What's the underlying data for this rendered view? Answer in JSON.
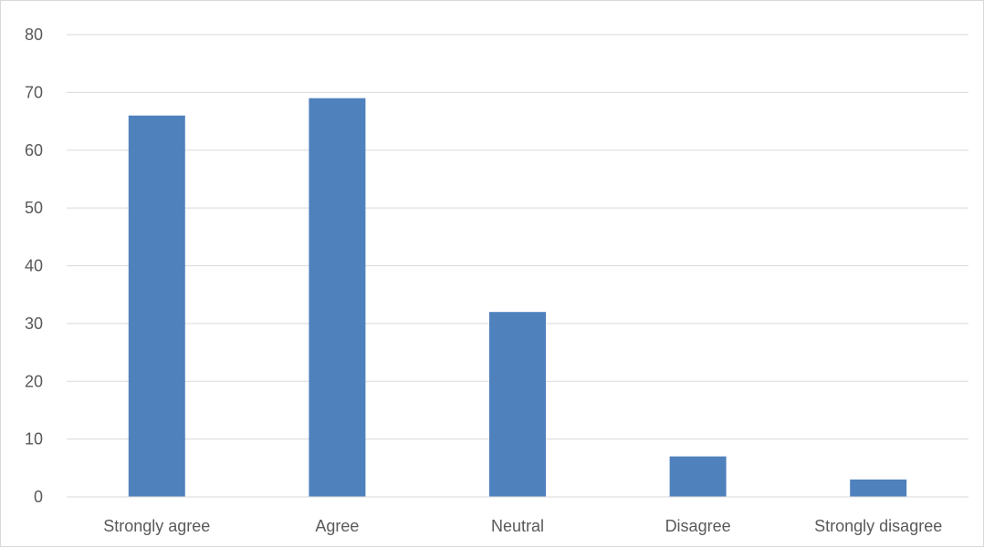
{
  "chart_data": {
    "type": "bar",
    "categories": [
      "Strongly agree",
      "Agree",
      "Neutral",
      "Disagree",
      "Strongly disagree"
    ],
    "values": [
      66,
      69,
      32,
      7,
      3
    ],
    "ylim": [
      0,
      80
    ],
    "yticks": [
      0,
      10,
      20,
      30,
      40,
      50,
      60,
      70,
      80
    ],
    "grid": true,
    "legend": "none",
    "bar_color": "#4f81bd"
  }
}
